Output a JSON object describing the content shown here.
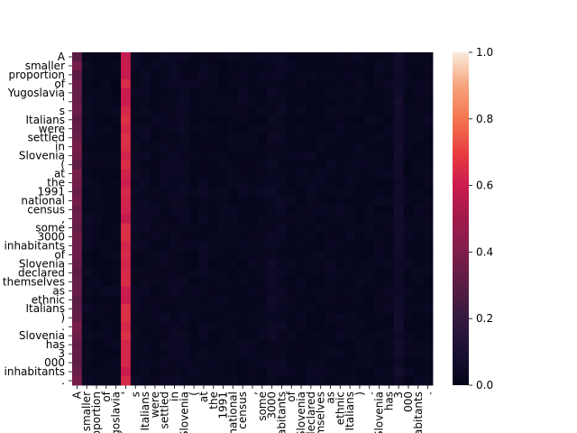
{
  "chart_data": {
    "type": "heatmap",
    "title": "",
    "xlabel": "",
    "ylabel": "",
    "tokens": [
      "A",
      "smaller",
      "proportion",
      "of",
      "Yugoslavia",
      "'",
      "s",
      "Italians",
      "were",
      "settled",
      "in",
      "Slovenia",
      "(",
      "at",
      "the",
      "1991",
      "national",
      "census",
      ",",
      "some",
      "3000",
      "inhabitants",
      "of",
      "Slovenia",
      "declared",
      "themselves",
      "as",
      "ethnic",
      "Italians",
      ")",
      ".",
      "Slovenia",
      "has",
      "3",
      "000",
      "inhabitants",
      "."
    ],
    "x_tick_labels": [
      "A",
      "smaller",
      "proportion",
      "of",
      "Yugoslavia",
      "'",
      "s",
      "Italians",
      "were",
      "settled",
      "in",
      "Slovenia",
      "(",
      "at",
      "the",
      "1991",
      "national",
      "census",
      ",",
      "some",
      "3000",
      "inhabitants",
      "of",
      "Slovenia",
      "declared",
      "themselves",
      "as",
      "ethnic",
      "Italians",
      ")",
      ".",
      "Slovenia",
      "has",
      "3",
      "000",
      "inhabitants",
      "."
    ],
    "y_tick_labels": [
      "A",
      "smaller",
      "proportion",
      "of",
      "Yugoslavia",
      "'",
      "s",
      "Italians",
      "were",
      "settled",
      "in",
      "Slovenia",
      "(",
      "at",
      "the",
      "1991",
      "national",
      "census",
      ",",
      "some",
      "3000",
      "inhabitants",
      "of",
      "Slovenia",
      "declared",
      "themselves",
      "as",
      "ethnic",
      "Italians",
      ")",
      ".",
      "Slovenia",
      "has",
      "3",
      "000",
      "inhabitants",
      "."
    ],
    "column_levels": [
      0.34,
      0.03,
      0.02,
      0.02,
      0.02,
      0.62,
      0.03,
      0.03,
      0.02,
      0.03,
      0.03,
      0.03,
      0.02,
      0.03,
      0.02,
      0.02,
      0.02,
      0.02,
      0.02,
      0.02,
      0.04,
      0.03,
      0.02,
      0.02,
      0.02,
      0.02,
      0.02,
      0.02,
      0.02,
      0.02,
      0.02,
      0.02,
      0.02,
      0.06,
      0.02,
      0.02,
      0.02
    ],
    "colorbar": {
      "min": 0.0,
      "max": 1.0,
      "ticks": [
        "0.0",
        "0.2",
        "0.4",
        "0.6",
        "0.8",
        "1.0"
      ],
      "colormap": "rocket"
    },
    "grid": false
  }
}
